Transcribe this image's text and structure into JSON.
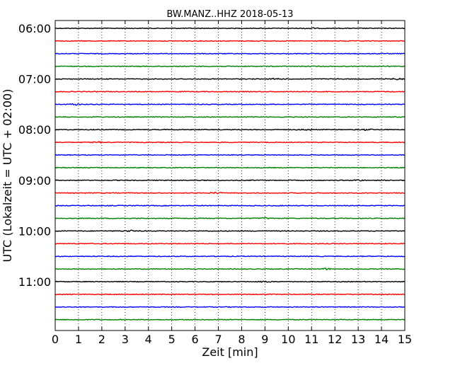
{
  "chart_data": {
    "type": "line",
    "title": "BW.MANZ..HHZ 2018-05-13",
    "xlabel": "Zeit  [min]",
    "ylabel": "UTC (Lokalzeit = UTC + 02:00)",
    "xlim": [
      0,
      15
    ],
    "x_ticks": [
      "0",
      "1",
      "2",
      "3",
      "4",
      "5",
      "6",
      "7",
      "8",
      "9",
      "10",
      "11",
      "12",
      "13",
      "14",
      "15"
    ],
    "y_ticks": [
      "06:00",
      "07:00",
      "08:00",
      "09:00",
      "10:00",
      "11:00"
    ],
    "grid": "vertical-dotted",
    "trace_colors": [
      "#000000",
      "#ff0000",
      "#0000ff",
      "#008000"
    ],
    "series": [
      {
        "start": "06:00",
        "bursts_min": [
          10.9
        ]
      },
      {
        "start": "06:15",
        "bursts_min": []
      },
      {
        "start": "06:30",
        "bursts_min": []
      },
      {
        "start": "06:45",
        "bursts_min": []
      },
      {
        "start": "07:00",
        "bursts_min": [
          9.5,
          14.7
        ]
      },
      {
        "start": "07:15",
        "bursts_min": []
      },
      {
        "start": "07:30",
        "bursts_min": [
          0.9
        ]
      },
      {
        "start": "07:45",
        "bursts_min": []
      },
      {
        "start": "08:00",
        "bursts_min": [
          10.8,
          13.4
        ]
      },
      {
        "start": "08:15",
        "bursts_min": [
          1.8
        ]
      },
      {
        "start": "08:30",
        "bursts_min": []
      },
      {
        "start": "08:45",
        "bursts_min": []
      },
      {
        "start": "09:00",
        "bursts_min": [
          13.0
        ]
      },
      {
        "start": "09:15",
        "bursts_min": [
          6.9
        ]
      },
      {
        "start": "09:30",
        "bursts_min": []
      },
      {
        "start": "09:45",
        "bursts_min": [
          9.0
        ]
      },
      {
        "start": "10:00",
        "bursts_min": [
          3.2
        ]
      },
      {
        "start": "10:15",
        "bursts_min": []
      },
      {
        "start": "10:30",
        "bursts_min": []
      },
      {
        "start": "10:45",
        "bursts_min": [
          11.6
        ]
      },
      {
        "start": "11:00",
        "bursts_min": [
          9.0
        ]
      },
      {
        "start": "11:15",
        "bursts_min": []
      },
      {
        "start": "11:30",
        "bursts_min": []
      },
      {
        "start": "11:45",
        "bursts_min": []
      }
    ]
  }
}
